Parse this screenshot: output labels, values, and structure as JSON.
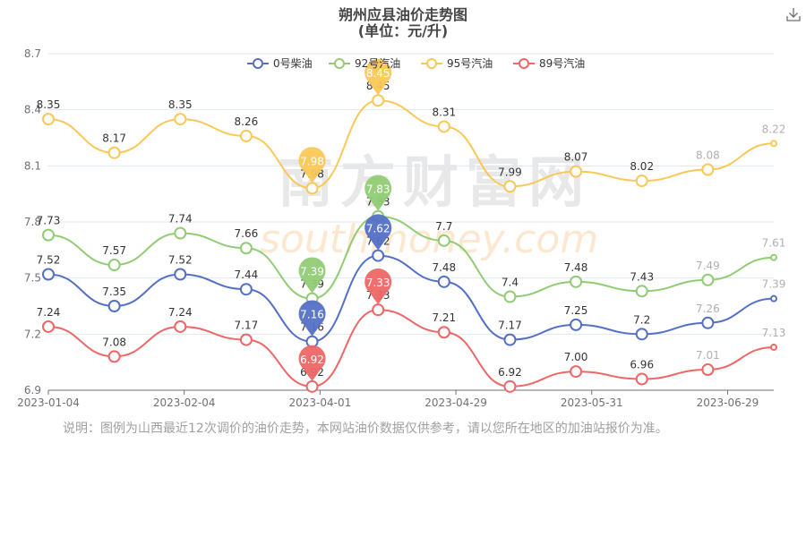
{
  "title": "朔州应县油价走势图",
  "subtitle": "(单位：元/升)",
  "note": "说明：图例为山西最近12次调价的油价走势，本网站油价数据仅供参考，请以您所在地区的加油站报价为准。",
  "watermark": {
    "cn": "南方财富网",
    "en": "southmoney.com"
  },
  "toolbar": {
    "download_icon": "download-icon"
  },
  "chart_data": {
    "type": "line",
    "smooth": true,
    "x_tick_labels": [
      "2023-01-04",
      "2023-02-04",
      "2023-04-01",
      "2023-04-29",
      "2023-05-31",
      "2023-06-29"
    ],
    "y_ticks": [
      6.9,
      7.2,
      7.5,
      7.8,
      8.1,
      8.4,
      8.7
    ],
    "ylim": [
      6.9,
      8.7
    ],
    "grid": true,
    "legend_position": "top-center",
    "series": [
      {
        "name": "0号柴油",
        "color": "#5470c6",
        "values": [
          7.52,
          7.35,
          7.52,
          7.44,
          7.16,
          7.62,
          7.48,
          7.17,
          7.25,
          7.2,
          7.26,
          7.39
        ]
      },
      {
        "name": "92号汽油",
        "color": "#91cc75",
        "values": [
          7.73,
          7.57,
          7.74,
          7.66,
          7.39,
          7.83,
          7.7,
          7.4,
          7.48,
          7.43,
          7.49,
          7.61
        ]
      },
      {
        "name": "95号汽油",
        "color": "#fac858",
        "values": [
          8.35,
          8.17,
          8.35,
          8.26,
          7.98,
          8.45,
          8.31,
          7.99,
          8.07,
          8.02,
          8.08,
          8.22
        ]
      },
      {
        "name": "89号汽油",
        "color": "#ee6666",
        "values": [
          7.24,
          7.08,
          7.24,
          7.17,
          6.92,
          7.33,
          7.21,
          6.92,
          7.0,
          6.96,
          7.01,
          7.13
        ]
      }
    ],
    "value_labels": [
      [
        "7.52",
        "7.35",
        "7.52",
        "7.44",
        "7.16",
        "7.62",
        "7.48",
        "7.17",
        "7.25",
        "7.2",
        "7.26",
        "7.39"
      ],
      [
        "7.73",
        "7.57",
        "7.74",
        "7.66",
        "7.39",
        "7.83",
        "7.7",
        "7.4",
        "7.48",
        "7.43",
        "7.49",
        "7.61"
      ],
      [
        "8.35",
        "8.17",
        "8.35",
        "8.26",
        "7.98",
        "8.45",
        "8.31",
        "7.99",
        "8.07",
        "8.02",
        "8.08",
        "8.22"
      ],
      [
        "7.24",
        "7.08",
        "7.24",
        "7.17",
        "6.92",
        "7.33",
        "7.21",
        "6.92",
        "7.00",
        "6.96",
        "7.01",
        "7.13"
      ]
    ],
    "highlight_pins": [
      {
        "series": 0,
        "index": 4,
        "label": "7.16"
      },
      {
        "series": 0,
        "index": 5,
        "label": "7.62"
      },
      {
        "series": 1,
        "index": 4,
        "label": "7.39"
      },
      {
        "series": 1,
        "index": 5,
        "label": "7.83"
      },
      {
        "series": 2,
        "index": 4,
        "label": "7.98"
      },
      {
        "series": 2,
        "index": 5,
        "label": "8.45"
      },
      {
        "series": 3,
        "index": 4,
        "label": "6.92"
      },
      {
        "series": 3,
        "index": 5,
        "label": "7.33"
      }
    ]
  }
}
